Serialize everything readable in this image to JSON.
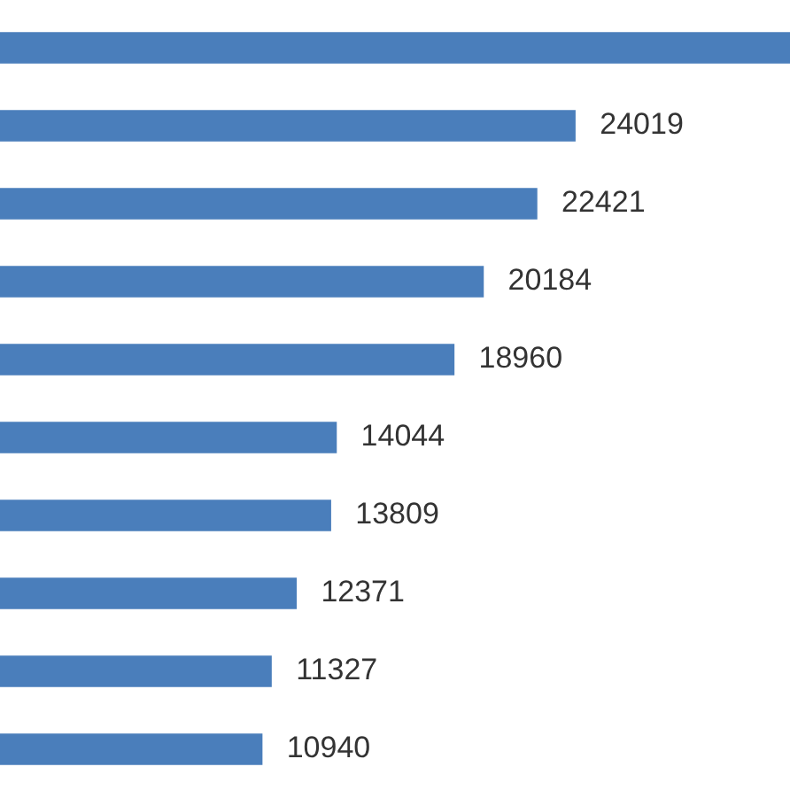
{
  "chart_data": {
    "type": "bar",
    "orientation": "horizontal",
    "categories": [
      null,
      null,
      null,
      null,
      null,
      null,
      null,
      null,
      null,
      null
    ],
    "values": [
      33000,
      24019,
      22421,
      20184,
      18960,
      14044,
      13809,
      12371,
      11327,
      10940
    ],
    "value_labels": [
      null,
      "24019",
      "22421",
      "20184",
      "18960",
      "14044",
      "13809",
      "12371",
      "11327",
      "10940"
    ],
    "color": "#4a7ebb",
    "tick_labels": false
  }
}
